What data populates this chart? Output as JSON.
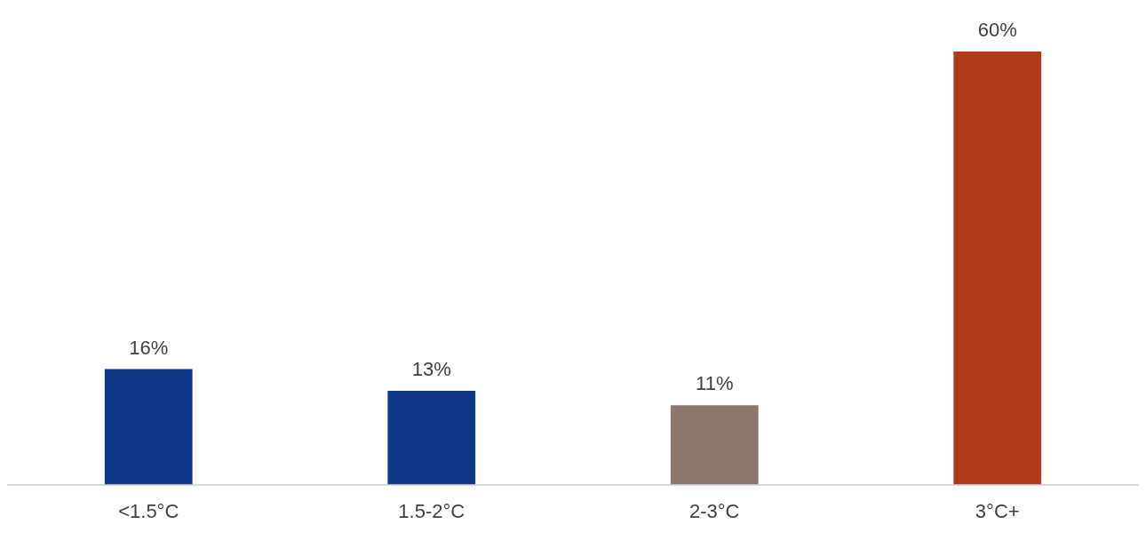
{
  "chart_data": {
    "type": "bar",
    "categories": [
      "<1.5°C",
      "1.5-2°C",
      "2-3°C",
      "3°C+"
    ],
    "values": [
      16,
      13,
      11,
      60
    ],
    "colors": [
      "#0f3787",
      "#0f3787",
      "#8c776f",
      "#b03b18"
    ],
    "value_labels": [
      "16%",
      "13%",
      "11%",
      "60%"
    ],
    "grid": false,
    "legend": false
  }
}
